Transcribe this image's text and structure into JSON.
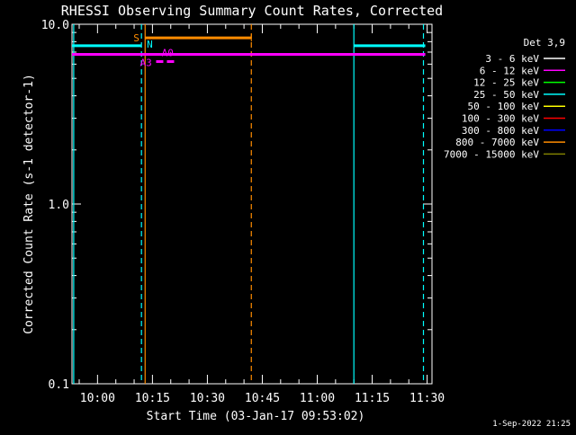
{
  "chart_data": {
    "type": "line",
    "title": "RHESSI Observing Summary Count Rates, Corrected",
    "xlabel": "Start Time (03-Jan-17 09:53:02)",
    "ylabel": "Corrected Count Rate (s-1 detector-1)",
    "y_scale": "log",
    "ylim": [
      0.1,
      10.0
    ],
    "xlim": [
      "09:53:02",
      "11:31:20"
    ],
    "x_ticks": [
      "10:00",
      "10:15",
      "10:30",
      "10:45",
      "11:00",
      "11:15",
      "11:30"
    ],
    "y_ticks": [
      "0.1",
      "1.0",
      "10.0"
    ],
    "grid": false,
    "legend_title": "Det 3,9",
    "legend_position": "right",
    "series": [
      {
        "name": "3 - 6 keV",
        "color": "#ffffff",
        "points": []
      },
      {
        "name": "6 - 12 keV",
        "color": "#ff00ff",
        "points": [
          [
            "09:53:02",
            6.8
          ],
          [
            "11:29:30",
            6.8
          ]
        ]
      },
      {
        "name": "12 - 25 keV",
        "color": "#00ff00",
        "points": []
      },
      {
        "name": "25 - 50 keV",
        "color": "#00ffff",
        "points": [
          [
            "09:53:02",
            7.6
          ],
          [
            "10:12:00",
            7.6
          ],
          [
            "11:10:00",
            7.6
          ],
          [
            "11:29:30",
            7.6
          ]
        ]
      },
      {
        "name": "50 - 100 keV",
        "color": "#ffff00",
        "points": []
      },
      {
        "name": "100 - 300 keV",
        "color": "#ff0000",
        "points": []
      },
      {
        "name": "300 - 800 keV",
        "color": "#0000ff",
        "points": []
      },
      {
        "name": "800 - 7000 keV",
        "color": "#ff8c00",
        "points": []
      },
      {
        "name": "7000 - 15000 keV",
        "color": "#808000",
        "points": []
      }
    ],
    "intervals": [
      {
        "label": "S",
        "color": "#ff8c00",
        "start": "10:13:00",
        "end": "10:42:00",
        "value": 8.4
      },
      {
        "label": "N",
        "color": "#00ffff",
        "start": "10:12:00",
        "end": "10:12:00",
        "value": 7.6
      },
      {
        "label": "A0",
        "color": "#ff00ff",
        "start": "10:18:00",
        "end": "10:18:00",
        "value": 6.8
      },
      {
        "label": "A3",
        "color": "#ff00ff",
        "start": "10:16:00",
        "end": "10:21:00",
        "value": 6.2
      }
    ],
    "vlines": [
      {
        "time": "09:53:30",
        "color": "#00ffff",
        "style": "solid"
      },
      {
        "time": "10:12:00",
        "color": "#00ffff",
        "style": "dashed"
      },
      {
        "time": "10:13:00",
        "color": "#ff8c00",
        "style": "solid"
      },
      {
        "time": "10:42:00",
        "color": "#ff8c00",
        "style": "dashed"
      },
      {
        "time": "11:10:00",
        "color": "#00ffff",
        "style": "solid"
      },
      {
        "time": "11:29:00",
        "color": "#00ffff",
        "style": "dashed"
      }
    ]
  },
  "footer_stamp": "1-Sep-2022 21:25"
}
